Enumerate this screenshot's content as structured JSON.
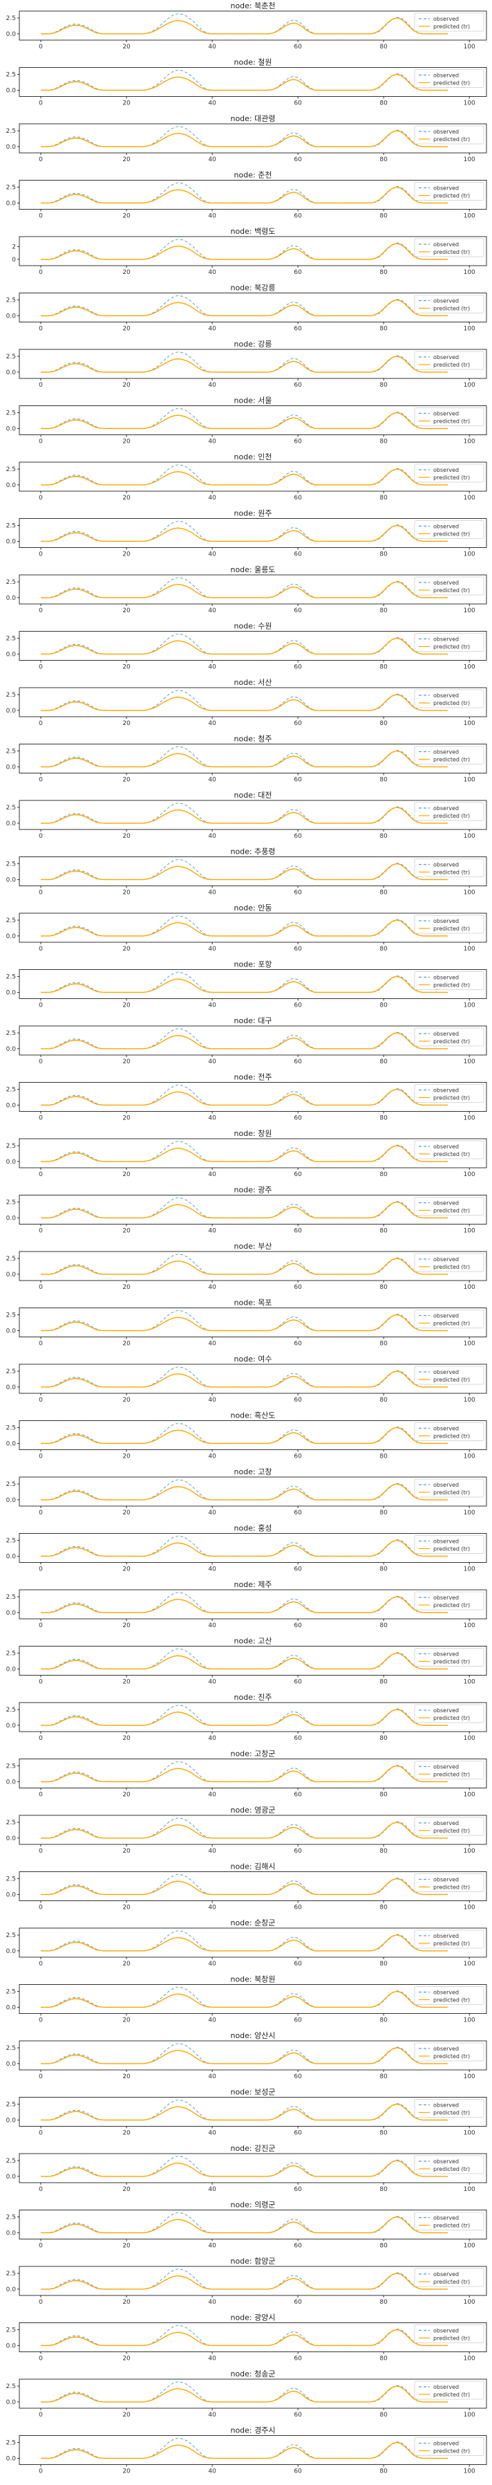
{
  "chart_data": {
    "type": "line",
    "panels": [
      {
        "title": "node: 북춘천",
        "y_ticks": [
          "2.5",
          "0.0"
        ]
      },
      {
        "title": "node: 철원",
        "y_ticks": [
          "2.5",
          "0.0"
        ]
      },
      {
        "title": "node: 대관령",
        "y_ticks": [
          "2.5",
          "0.0"
        ]
      },
      {
        "title": "node: 춘천",
        "y_ticks": [
          "2.5",
          "0.0"
        ]
      },
      {
        "title": "node: 백령도",
        "y_ticks": [
          "2",
          "0"
        ]
      },
      {
        "title": "node: 북강릉",
        "y_ticks": [
          "2.5",
          "0.0"
        ]
      },
      {
        "title": "node: 강릉",
        "y_ticks": [
          "2.5",
          "0.0"
        ]
      },
      {
        "title": "node: 서울",
        "y_ticks": [
          "2.5",
          "0.0"
        ]
      },
      {
        "title": "node: 인천",
        "y_ticks": [
          "2.5",
          "0.0"
        ]
      },
      {
        "title": "node: 원주",
        "y_ticks": [
          "2.5",
          "0.0"
        ]
      },
      {
        "title": "node: 울릉도",
        "y_ticks": [
          "2.5",
          "0.0"
        ]
      },
      {
        "title": "node: 수원",
        "y_ticks": [
          "2.5",
          "0.0"
        ]
      },
      {
        "title": "node: 서산",
        "y_ticks": [
          "2.5",
          "0.0"
        ]
      },
      {
        "title": "node: 청주",
        "y_ticks": [
          "2.5",
          "0.0"
        ]
      },
      {
        "title": "node: 대전",
        "y_ticks": [
          "2.5",
          "0.0"
        ]
      },
      {
        "title": "node: 추풍령",
        "y_ticks": [
          "2.5",
          "0.0"
        ]
      },
      {
        "title": "node: 안동",
        "y_ticks": [
          "2.5",
          "0.0"
        ]
      },
      {
        "title": "node: 포항",
        "y_ticks": [
          "2.5",
          "0.0"
        ]
      },
      {
        "title": "node: 대구",
        "y_ticks": [
          "2.5",
          "0.0"
        ]
      },
      {
        "title": "node: 전주",
        "y_ticks": [
          "2.5",
          "0.0"
        ]
      },
      {
        "title": "node: 창원",
        "y_ticks": [
          "2.5",
          "0.0"
        ]
      },
      {
        "title": "node: 광주",
        "y_ticks": [
          "2.5",
          "0.0"
        ]
      },
      {
        "title": "node: 부산",
        "y_ticks": [
          "2.5",
          "0.0"
        ]
      },
      {
        "title": "node: 목포",
        "y_ticks": [
          "2.5",
          "0.0"
        ]
      },
      {
        "title": "node: 여수",
        "y_ticks": [
          "2.5",
          "0.0"
        ]
      },
      {
        "title": "node: 흑산도",
        "y_ticks": [
          "2.5",
          "0.0"
        ]
      },
      {
        "title": "node: 고창",
        "y_ticks": [
          "2.5",
          "0.0"
        ]
      },
      {
        "title": "node: 홍성",
        "y_ticks": [
          "2.5",
          "0.0"
        ]
      },
      {
        "title": "node: 제주",
        "y_ticks": [
          "2.5",
          "0.0"
        ]
      },
      {
        "title": "node: 고산",
        "y_ticks": [
          "2.5",
          "0.0"
        ]
      },
      {
        "title": "node: 진주",
        "y_ticks": [
          "2.5",
          "0.0"
        ]
      },
      {
        "title": "node: 고창군",
        "y_ticks": [
          "2.5",
          "0.0"
        ]
      },
      {
        "title": "node: 영광군",
        "y_ticks": [
          "2.5",
          "0.0"
        ]
      },
      {
        "title": "node: 김해시",
        "y_ticks": [
          "2.5",
          "0.0"
        ]
      },
      {
        "title": "node: 순창군",
        "y_ticks": [
          "2.5",
          "0.0"
        ]
      },
      {
        "title": "node: 북창원",
        "y_ticks": [
          "2.5",
          "0.0"
        ]
      },
      {
        "title": "node: 양산시",
        "y_ticks": [
          "2.5",
          "0.0"
        ]
      },
      {
        "title": "node: 보성군",
        "y_ticks": [
          "2.5",
          "0.0"
        ]
      },
      {
        "title": "node: 강진군",
        "y_ticks": [
          "2.5",
          "0.0"
        ]
      },
      {
        "title": "node: 의령군",
        "y_ticks": [
          "2.5",
          "0.0"
        ]
      },
      {
        "title": "node: 함양군",
        "y_ticks": [
          "2.5",
          "0.0"
        ]
      },
      {
        "title": "node: 광양시",
        "y_ticks": [
          "2.5",
          "0.0"
        ]
      },
      {
        "title": "node: 청송군",
        "y_ticks": [
          "2.5",
          "0.0"
        ]
      },
      {
        "title": "node: 경주시",
        "y_ticks": [
          "2.5",
          "0.0"
        ]
      }
    ],
    "x_ticks": [
      0,
      20,
      40,
      60,
      80,
      100
    ],
    "xlim": [
      -5,
      104
    ],
    "ylim": [
      -1.0,
      3.6
    ],
    "legend_position": "upper right",
    "grid": false,
    "x": [
      0,
      1,
      2,
      3,
      4,
      5,
      6,
      7,
      8,
      9,
      10,
      11,
      12,
      13,
      14,
      15,
      16,
      17,
      18,
      19,
      20,
      21,
      22,
      23,
      24,
      25,
      26,
      27,
      28,
      29,
      30,
      31,
      32,
      33,
      34,
      35,
      36,
      37,
      38,
      39,
      40,
      41,
      42,
      43,
      44,
      45,
      46,
      47,
      48,
      49,
      50,
      51,
      52,
      53,
      54,
      55,
      56,
      57,
      58,
      59,
      60,
      61,
      62,
      63,
      64,
      65,
      66,
      67,
      68,
      69,
      70,
      71,
      72,
      73,
      74,
      75,
      76,
      77,
      78,
      79,
      80,
      81,
      82,
      83,
      84,
      85,
      86,
      87,
      88,
      89,
      90,
      91,
      92,
      93,
      94,
      95
    ],
    "series": [
      {
        "name": "observed",
        "color": "#5b9bd5",
        "dash": "4,3",
        "values": [
          0,
          0,
          0,
          0.15,
          0.45,
          0.85,
          1.2,
          1.45,
          1.55,
          1.5,
          1.3,
          1.0,
          0.6,
          0.25,
          0.05,
          0,
          0,
          0,
          0,
          0,
          0,
          0,
          0,
          0,
          0,
          0.1,
          0.4,
          0.8,
          1.4,
          2.0,
          2.6,
          3.0,
          3.2,
          3.1,
          2.8,
          2.3,
          1.7,
          1.0,
          0.4,
          0.1,
          0,
          0,
          0,
          0,
          0,
          0,
          0,
          0,
          0,
          0,
          0,
          0,
          0,
          0,
          0.1,
          0.4,
          0.9,
          1.5,
          2.0,
          2.2,
          2.0,
          1.5,
          0.8,
          0.3,
          0,
          0,
          0,
          0,
          0,
          0,
          0,
          0,
          0,
          0,
          0,
          0,
          0,
          0,
          0.1,
          0.4,
          1.0,
          1.7,
          2.3,
          2.6,
          2.5,
          2.0,
          1.3,
          0.6,
          0.2,
          0,
          0,
          0,
          0,
          0,
          0,
          0
        ]
      },
      {
        "name": "predicted (tr)",
        "color": "#ffa500",
        "dash": "",
        "values": [
          0,
          0,
          0,
          0.1,
          0.35,
          0.7,
          1.0,
          1.25,
          1.35,
          1.3,
          1.1,
          0.8,
          0.45,
          0.15,
          0.03,
          0,
          0,
          0,
          0,
          0,
          0,
          0,
          0,
          0,
          0,
          0.1,
          0.3,
          0.6,
          1.0,
          1.4,
          1.75,
          2.0,
          2.1,
          2.0,
          1.8,
          1.45,
          1.0,
          0.55,
          0.2,
          0.05,
          0,
          0,
          0,
          0,
          0,
          0,
          0,
          0,
          0,
          0,
          0,
          0,
          0,
          0,
          0.1,
          0.35,
          0.75,
          1.2,
          1.55,
          1.7,
          1.55,
          1.15,
          0.6,
          0.2,
          0,
          0,
          0,
          0,
          0,
          0,
          0,
          0,
          0,
          0,
          0,
          0,
          0,
          0,
          0.15,
          0.5,
          1.1,
          1.8,
          2.3,
          2.5,
          2.35,
          1.85,
          1.15,
          0.5,
          0.15,
          0,
          0,
          0,
          0,
          0,
          0,
          0
        ]
      }
    ]
  }
}
